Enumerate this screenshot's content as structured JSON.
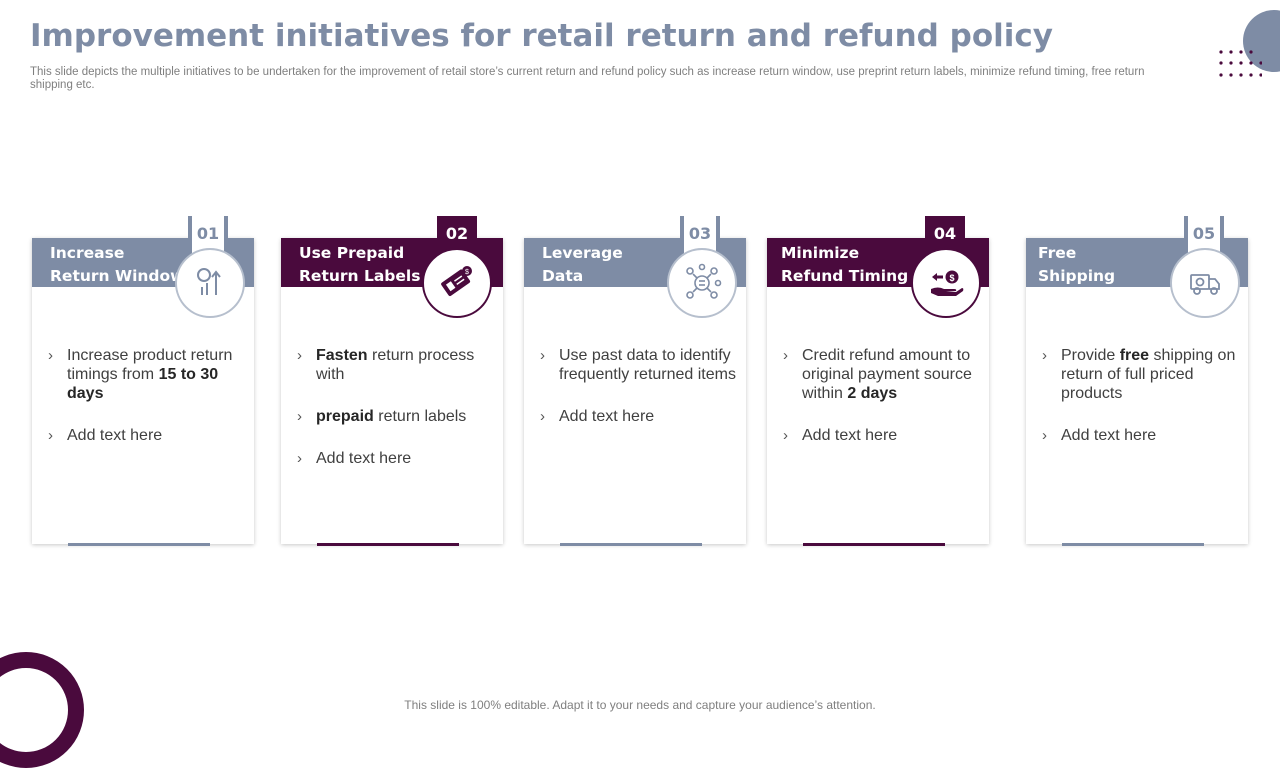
{
  "slide": {
    "title": "Improvement initiatives for retail return and refund policy",
    "subtitle": "This slide depicts the multiple initiatives to be undertaken for the improvement of retail store’s current return and refund policy such as increase return window, use preprint return labels, minimize refund timing, free return shipping etc.",
    "footer": "This slide is 100% editable. Adapt it to your needs and capture your audience’s attention."
  },
  "colors": {
    "accent_gray": "#7e8ca5",
    "accent_purple": "#4a0a3d"
  },
  "cards": [
    {
      "number": "01",
      "title": "Increase\nReturn Window",
      "icon": "growth-chart-icon",
      "bullets": [
        {
          "pre": "Increase product return timings from ",
          "bold": "15 to 30 days",
          "post": ""
        },
        {
          "pre": "Add text here",
          "bold": "",
          "post": ""
        }
      ]
    },
    {
      "number": "02",
      "title": "Use Prepaid\nReturn Labels",
      "icon": "payment-label-icon",
      "bullets": [
        {
          "pre": "",
          "bold": "Fasten",
          "post": " return process with"
        },
        {
          "pre": "",
          "bold": "prepaid",
          "post": " return labels"
        },
        {
          "pre": "Add text here",
          "bold": "",
          "post": ""
        }
      ]
    },
    {
      "number": "03",
      "title": "Leverage\nData",
      "icon": "data-network-icon",
      "bullets": [
        {
          "pre": "Use past data to identify frequently returned items",
          "bold": "",
          "post": ""
        },
        {
          "pre": "Add text here",
          "bold": "",
          "post": ""
        }
      ]
    },
    {
      "number": "04",
      "title": "Minimize\nRefund Timing",
      "icon": "refund-hand-icon",
      "bullets": [
        {
          "pre": "Credit refund amount to original payment source within ",
          "bold": "2 days",
          "post": ""
        },
        {
          "pre": "Add text here",
          "bold": "",
          "post": ""
        }
      ]
    },
    {
      "number": "05",
      "title": "Free\nShipping",
      "icon": "delivery-truck-icon",
      "bullets": [
        {
          "pre": "Provide ",
          "bold": "free",
          "post": " shipping on return of full priced products"
        },
        {
          "pre": "Add text here",
          "bold": "",
          "post": ""
        }
      ]
    }
  ]
}
